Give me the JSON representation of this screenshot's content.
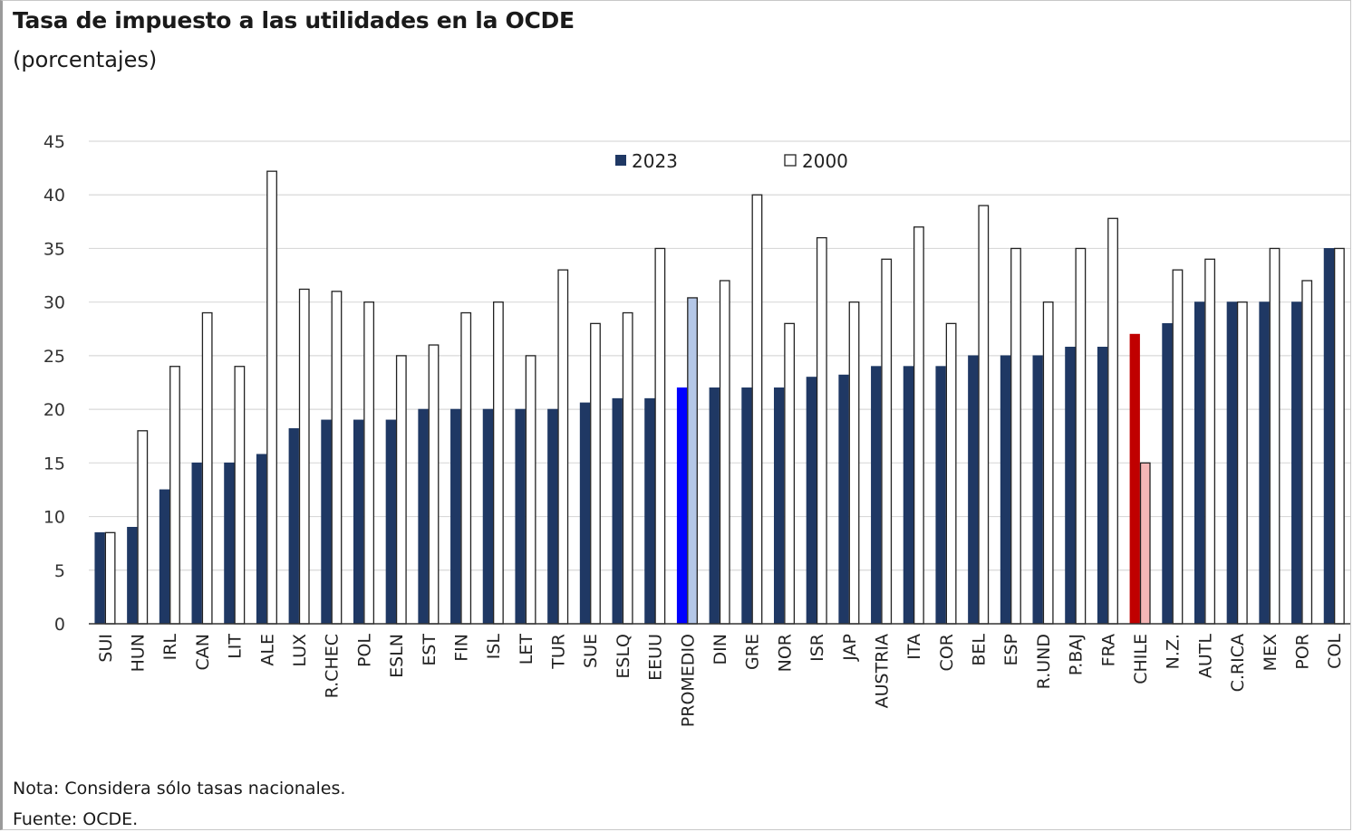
{
  "chart_data": {
    "type": "bar",
    "title": "Tasa de impuesto a las utilidades en la OCDE",
    "subtitle": "(porcentajes)",
    "xlabel": "",
    "ylabel": "",
    "ylim": [
      0,
      45
    ],
    "yticks": [
      0,
      5,
      10,
      15,
      20,
      25,
      30,
      35,
      40,
      45
    ],
    "grid": true,
    "legend_position": "top-center",
    "categories": [
      "SUI",
      "HUN",
      "IRL",
      "CAN",
      "LIT",
      "ALE",
      "LUX",
      "R.CHEC",
      "POL",
      "ESLN",
      "EST",
      "FIN",
      "ISL",
      "LET",
      "TUR",
      "SUE",
      "ESLQ",
      "EEUU",
      "PROMEDIO",
      "DIN",
      "GRE",
      "NOR",
      "ISR",
      "JAP",
      "AUSTRIA",
      "ITA",
      "COR",
      "BEL",
      "ESP",
      "R.UND",
      "P.BAJ",
      "FRA",
      "CHILE",
      "N.Z.",
      "AUTL",
      "C.RICA",
      "MEX",
      "POR",
      "COL"
    ],
    "series": [
      {
        "name": "2023",
        "color": "#1f3864",
        "values": [
          8.5,
          9,
          12.5,
          15,
          15,
          15.8,
          18.2,
          19,
          19,
          19,
          20,
          20,
          20,
          20,
          20,
          20.6,
          21,
          21,
          22,
          22,
          22,
          22,
          23,
          23.2,
          24,
          24,
          24,
          25,
          25,
          25,
          25.8,
          25.8,
          27,
          28,
          30,
          30,
          30,
          30,
          35
        ]
      },
      {
        "name": "2000",
        "color": "#ffffff",
        "values": [
          8.5,
          18,
          24,
          29,
          24,
          42.2,
          31.2,
          31,
          30,
          25,
          26,
          29,
          30,
          25,
          33,
          28,
          29,
          35,
          30.4,
          32,
          40,
          28,
          36,
          30,
          34,
          37,
          28,
          39,
          35,
          30,
          35,
          37.8,
          15,
          33,
          34,
          30,
          35,
          32,
          35
        ]
      }
    ],
    "highlights": {
      "PROMEDIO": {
        "color_2023": "#0000ff",
        "color_2000": "#b4c7e7"
      },
      "CHILE": {
        "color_2023": "#c00000",
        "color_2000": "#f4b6b6"
      }
    }
  },
  "footer": {
    "note": "Nota: Considera sólo tasas nacionales.",
    "source": "Fuente: OCDE."
  }
}
